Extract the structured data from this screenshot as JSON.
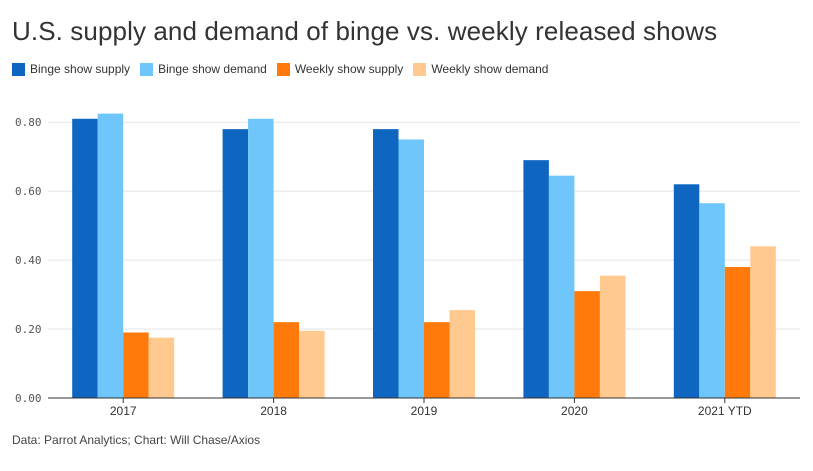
{
  "title": "U.S. supply and demand of binge vs. weekly released shows",
  "source": "Data: Parrot Analytics; Chart: Will Chase/Axios",
  "legend": [
    {
      "label": "Binge show supply",
      "color": "#0f66c1"
    },
    {
      "label": "Binge show demand",
      "color": "#6ec6fb"
    },
    {
      "label": "Weekly show supply",
      "color": "#ff7a0a"
    },
    {
      "label": "Weekly show demand",
      "color": "#ffc98f"
    }
  ],
  "chart_data": {
    "type": "bar",
    "title": "U.S. supply and demand of binge vs. weekly released shows",
    "xlabel": "",
    "ylabel": "",
    "categories": [
      "2017",
      "2018",
      "2019",
      "2020",
      "2021 YTD"
    ],
    "series": [
      {
        "name": "Binge show supply",
        "color": "#0f66c1",
        "values": [
          0.81,
          0.78,
          0.78,
          0.69,
          0.62
        ]
      },
      {
        "name": "Binge show demand",
        "color": "#6ec6fb",
        "values": [
          0.825,
          0.81,
          0.75,
          0.645,
          0.565
        ]
      },
      {
        "name": "Weekly show supply",
        "color": "#ff7a0a",
        "values": [
          0.19,
          0.22,
          0.22,
          0.31,
          0.38
        ]
      },
      {
        "name": "Weekly show demand",
        "color": "#ffc98f",
        "values": [
          0.175,
          0.195,
          0.255,
          0.355,
          0.44
        ]
      }
    ],
    "ylim": [
      0,
      0.85
    ],
    "yticks": [
      "0.00",
      "0.20",
      "0.40",
      "0.60",
      "0.80"
    ],
    "ytick_values": [
      0,
      0.2,
      0.4,
      0.6,
      0.8
    ],
    "grid": true,
    "legend_position": "top-left"
  }
}
